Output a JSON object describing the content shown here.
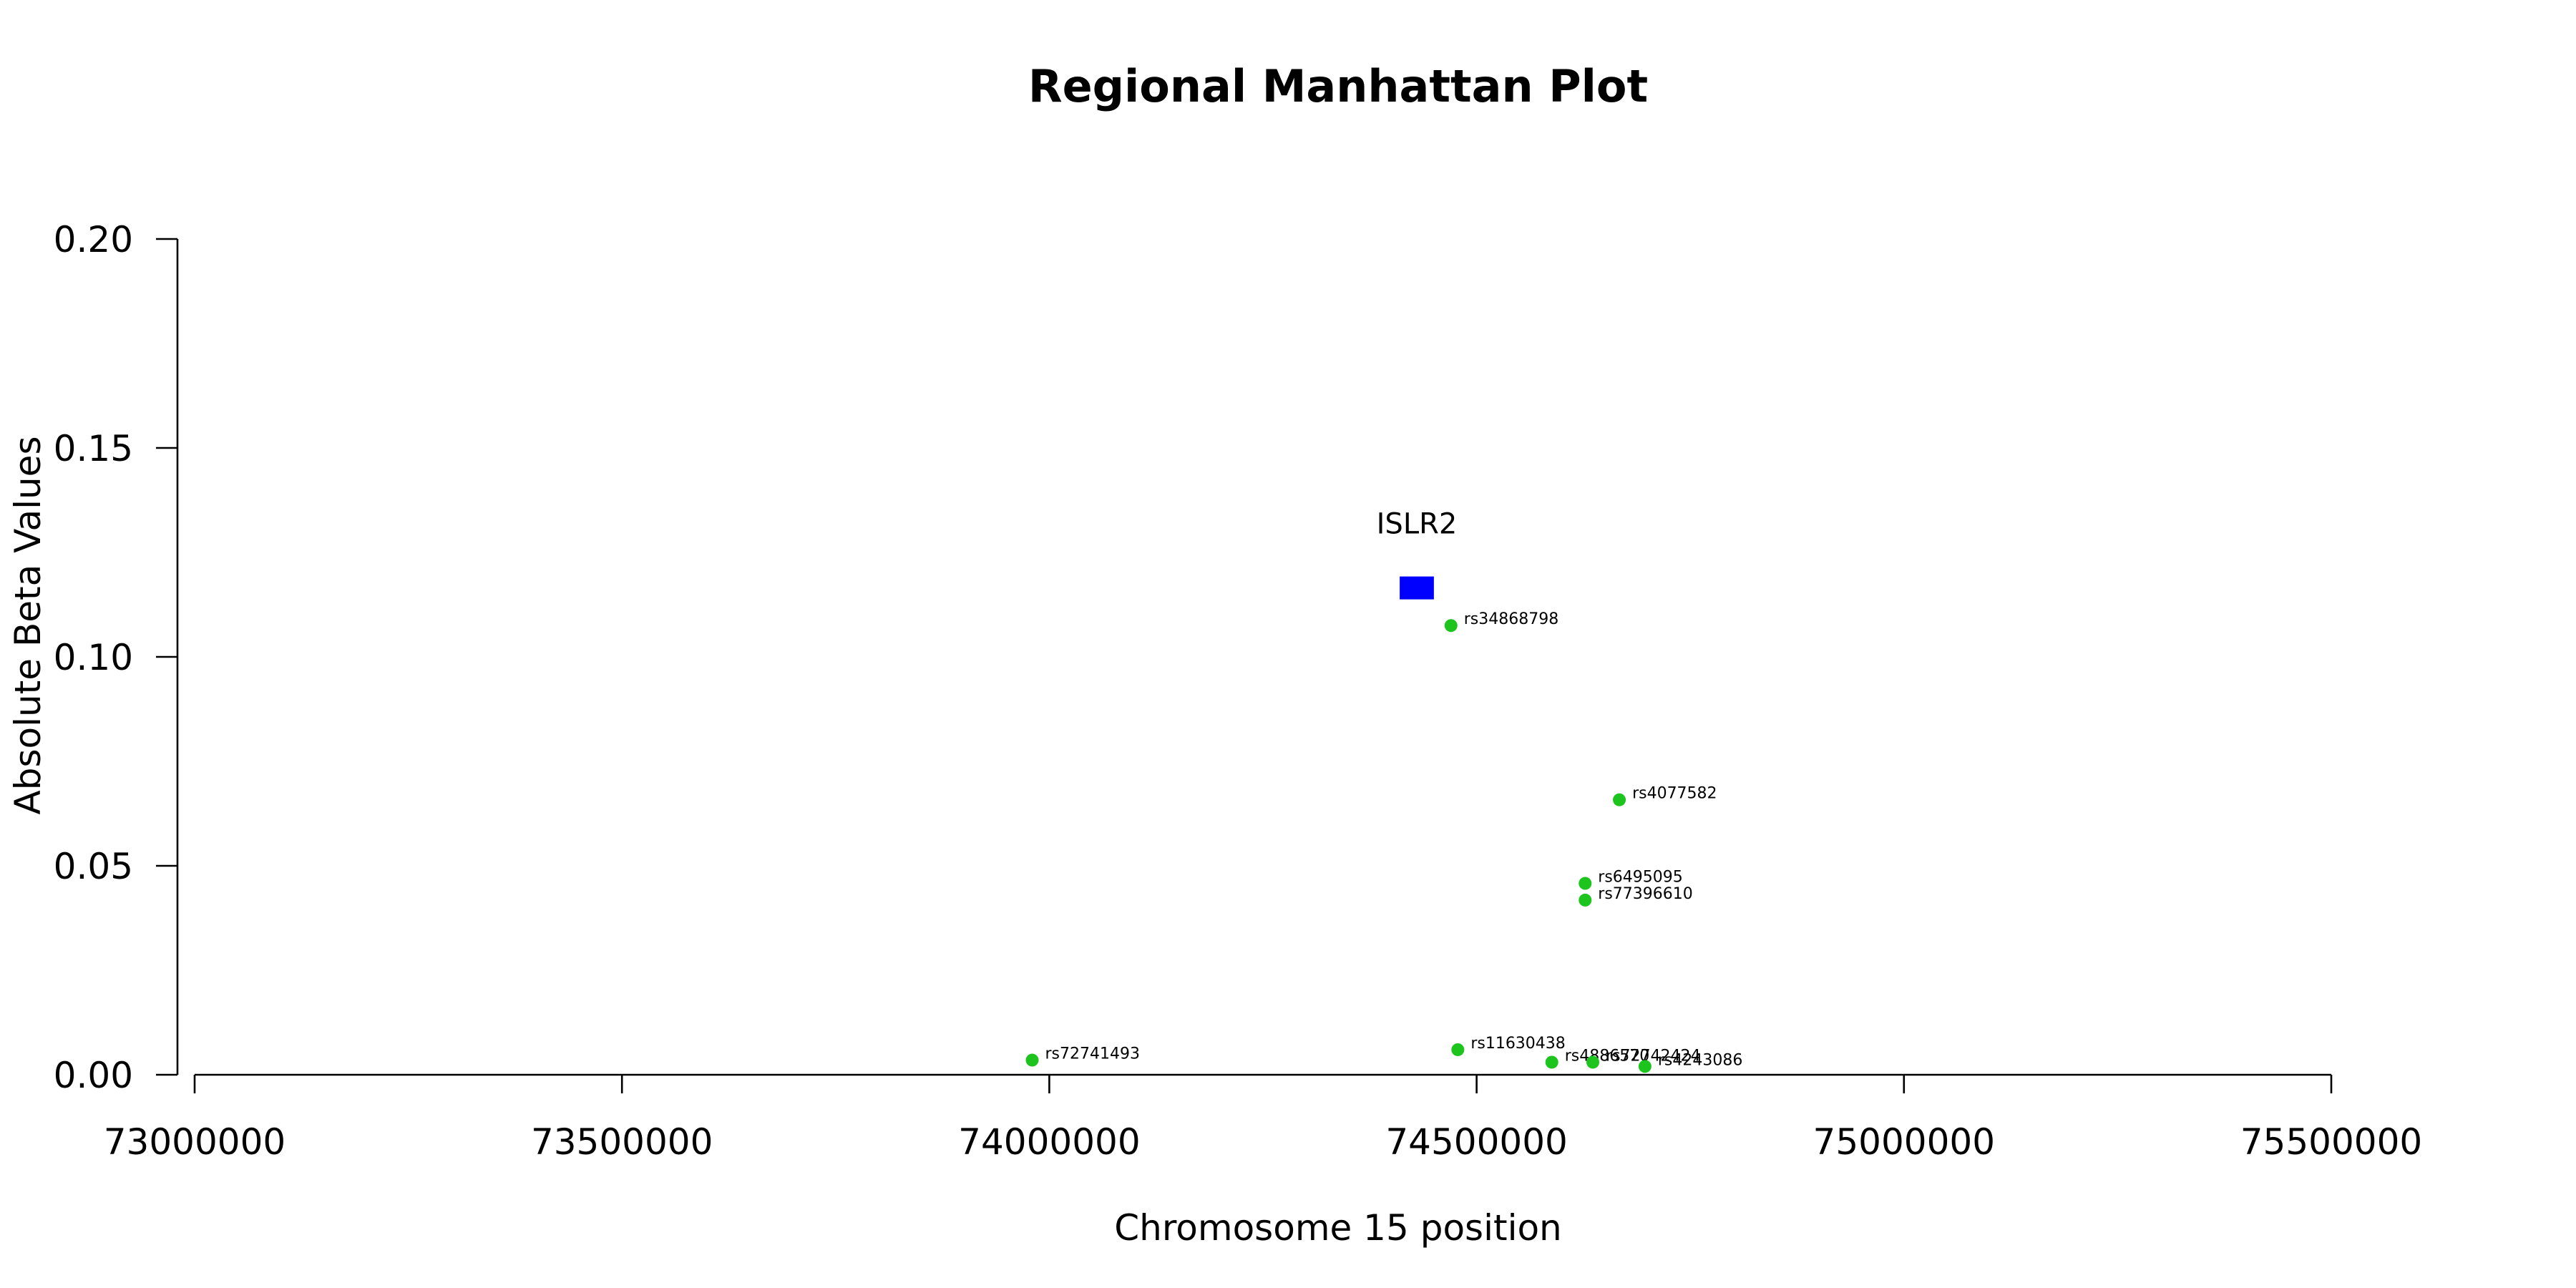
{
  "chart_data": {
    "type": "scatter",
    "title": "Regional Manhattan Plot",
    "xlabel": "Chromosome 15 position",
    "ylabel": "Absolute Beta Values",
    "xlim": [
      73000000,
      75500000
    ],
    "ylim": [
      0,
      0.2
    ],
    "x_ticks": [
      73000000,
      73500000,
      74000000,
      74500000,
      75000000,
      75500000
    ],
    "x_tick_labels": [
      "73000000",
      "73500000",
      "74000000",
      "74500000",
      "75000000",
      "75500000"
    ],
    "y_ticks": [
      0,
      0.05,
      0.1,
      0.15,
      0.2
    ],
    "y_tick_labels": [
      "0.00",
      "0.05",
      "0.10",
      "0.15",
      "0.20"
    ],
    "grid": false,
    "colors": {
      "points": "#1ec41e",
      "gene": "#0000ff",
      "axis": "#000000"
    },
    "series": [
      {
        "points": [
          {
            "label": "rs72741493",
            "x": 73980000,
            "y": 0.0035
          },
          {
            "label": "rs34868798",
            "x": 74470000,
            "y": 0.1075
          },
          {
            "label": "rs11630438",
            "x": 74478000,
            "y": 0.006
          },
          {
            "label": "rs4886570",
            "x": 74588000,
            "y": 0.003
          },
          {
            "label": "rs72742424",
            "x": 74636000,
            "y": 0.003
          },
          {
            "label": "rs6495095",
            "x": 74627000,
            "y": 0.0458
          },
          {
            "label": "rs77396610",
            "x": 74627000,
            "y": 0.0418
          },
          {
            "label": "rs4077582",
            "x": 74667000,
            "y": 0.0658
          },
          {
            "label": "rs4243086",
            "x": 74697000,
            "y": 0.002
          }
        ]
      }
    ],
    "genes": [
      {
        "name": "ISLR2",
        "start": 74410000,
        "end": 74450000,
        "y": 0.1165
      }
    ]
  }
}
